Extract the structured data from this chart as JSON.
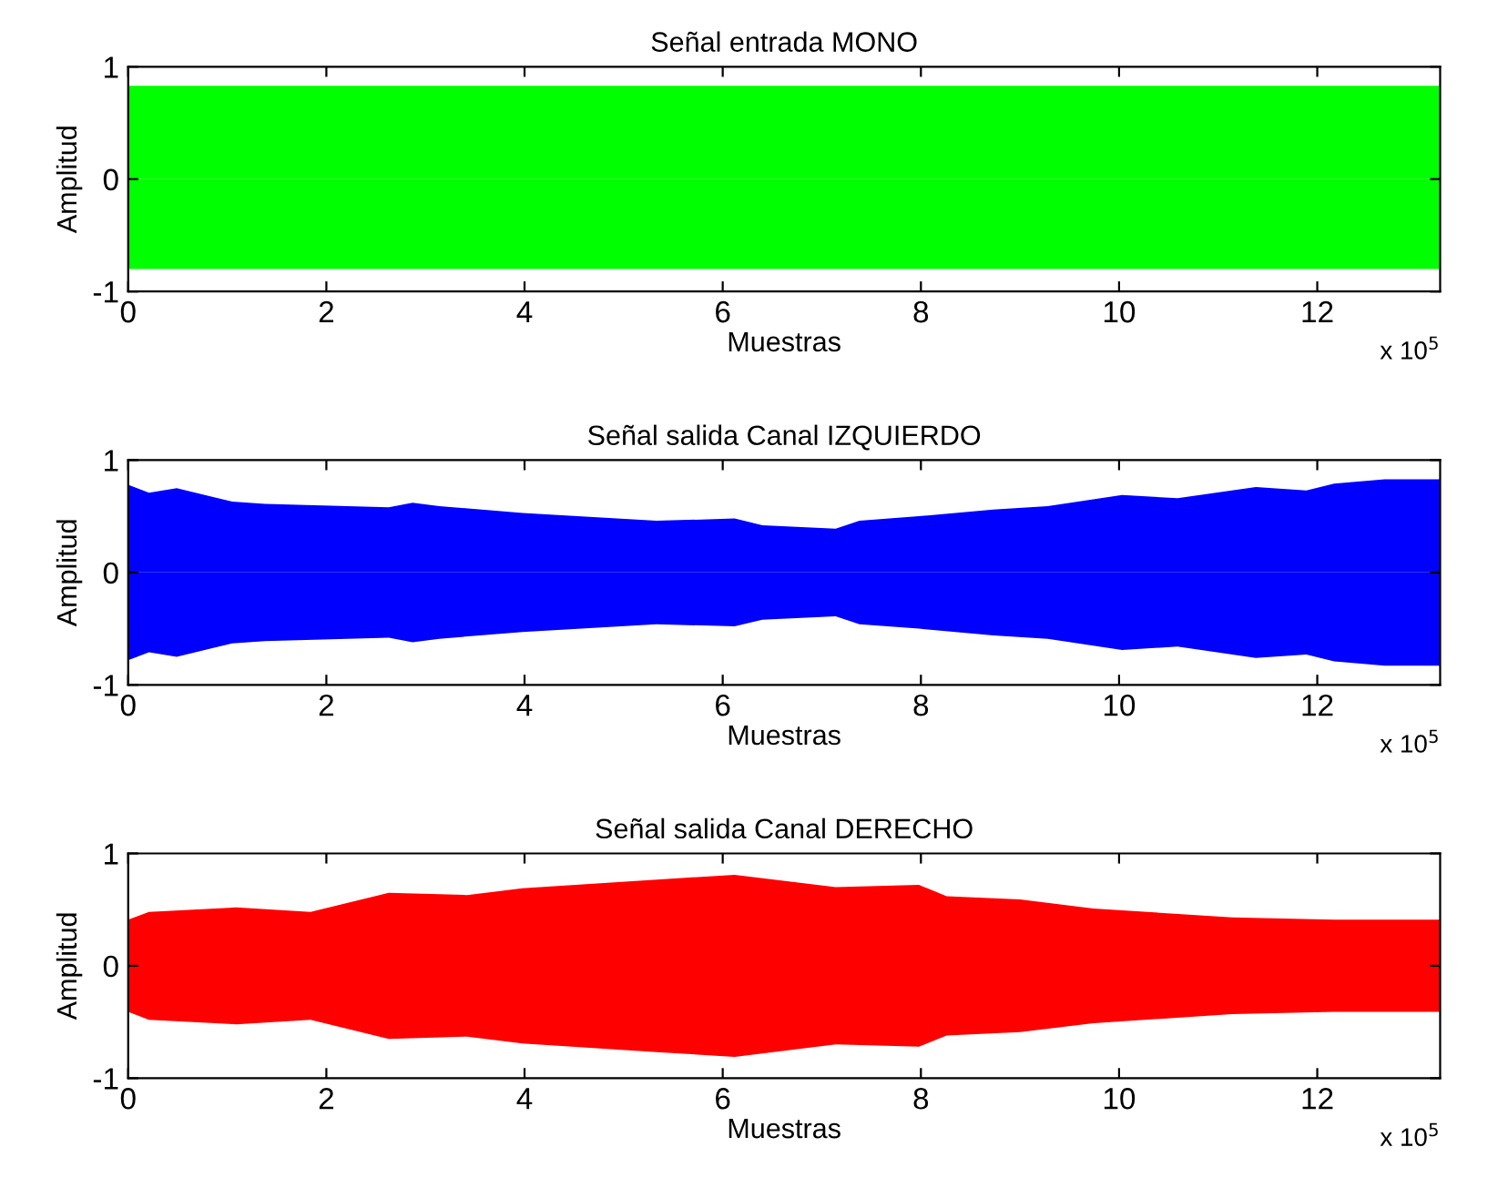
{
  "chart_data": [
    {
      "type": "area",
      "title": "Señal entrada MONO",
      "xlabel": "Muestras",
      "ylabel": "Amplitud",
      "annotations": [
        "x 10$^{5}$"
      ],
      "xlim": [
        0,
        13.24
      ],
      "ylim": [
        -1,
        1
      ],
      "xticks": [
        0,
        2,
        4,
        6,
        8,
        10,
        12
      ],
      "yticks": [
        -1,
        0,
        1
      ],
      "series": [
        {
          "color": "#00ff00",
          "x": [
            0,
            6.6,
            13.24
          ],
          "values": [
            0.83,
            0.83,
            0.83
          ]
        },
        {
          "color": "#00ff00",
          "x": [
            0,
            6.6,
            13.24
          ],
          "values": [
            -0.8,
            -0.8,
            -0.8
          ]
        }
      ]
    },
    {
      "type": "area",
      "title": "Señal salida Canal IZQUIERDO",
      "xlabel": "Muestras",
      "ylabel": "Amplitud",
      "annotations": [
        "x 10$^{5}$"
      ],
      "xlim": [
        0,
        13.24
      ],
      "ylim": [
        -1,
        1
      ],
      "xticks": [
        0,
        2,
        4,
        6,
        8,
        10,
        12
      ],
      "yticks": [
        -1,
        0,
        1
      ],
      "series": [
        {
          "color": "#0000ff",
          "x": [
            0,
            0.21,
            0.49,
            0.82,
            1.05,
            1.38,
            2.63,
            2.87,
            3.14,
            3.98,
            5.33,
            6.12,
            6.4,
            7.14,
            7.38,
            7.98,
            8.73,
            9.28,
            10.03,
            10.59,
            11.38,
            11.89,
            12.17,
            12.68,
            13.24
          ],
          "values": [
            0.78,
            0.71,
            0.75,
            0.68,
            0.63,
            0.61,
            0.58,
            0.62,
            0.59,
            0.53,
            0.46,
            0.48,
            0.42,
            0.39,
            0.46,
            0.5,
            0.56,
            0.59,
            0.69,
            0.66,
            0.76,
            0.73,
            0.79,
            0.83,
            0.83
          ]
        },
        {
          "color": "#0000ff",
          "x": [
            0,
            0.21,
            0.49,
            0.82,
            1.05,
            1.38,
            2.63,
            2.87,
            3.14,
            3.98,
            5.33,
            6.12,
            6.4,
            7.14,
            7.38,
            7.98,
            8.73,
            9.28,
            10.03,
            10.59,
            11.38,
            11.89,
            12.17,
            12.68,
            13.24
          ],
          "values": [
            -0.78,
            -0.71,
            -0.75,
            -0.68,
            -0.63,
            -0.61,
            -0.58,
            -0.62,
            -0.59,
            -0.53,
            -0.46,
            -0.48,
            -0.42,
            -0.39,
            -0.46,
            -0.5,
            -0.56,
            -0.59,
            -0.69,
            -0.66,
            -0.76,
            -0.73,
            -0.79,
            -0.83,
            -0.83
          ]
        }
      ]
    },
    {
      "type": "area",
      "title": "Señal salida Canal DERECHO",
      "xlabel": "Muestras",
      "ylabel": "Amplitud",
      "annotations": [
        "x 10$^{5}$"
      ],
      "xlim": [
        0,
        13.24
      ],
      "ylim": [
        -1,
        1
      ],
      "xticks": [
        0,
        2,
        4,
        6,
        8,
        10,
        12
      ],
      "yticks": [
        -1,
        0,
        1
      ],
      "series": [
        {
          "color": "#ff0000",
          "x": [
            0,
            0.21,
            1.09,
            1.84,
            2.63,
            3.42,
            3.98,
            5.37,
            6.12,
            7.14,
            7.98,
            8.26,
            9.0,
            9.74,
            11.14,
            12.17,
            13.24
          ],
          "values": [
            0.41,
            0.48,
            0.52,
            0.48,
            0.65,
            0.63,
            0.69,
            0.77,
            0.81,
            0.7,
            0.72,
            0.62,
            0.59,
            0.51,
            0.43,
            0.41,
            0.41
          ]
        },
        {
          "color": "#ff0000",
          "x": [
            0,
            0.21,
            1.09,
            1.84,
            2.63,
            3.42,
            3.98,
            5.37,
            6.12,
            7.14,
            7.98,
            8.26,
            9.0,
            9.74,
            11.14,
            12.17,
            13.24
          ],
          "values": [
            -0.41,
            -0.48,
            -0.52,
            -0.48,
            -0.65,
            -0.63,
            -0.69,
            -0.77,
            -0.81,
            -0.7,
            -0.72,
            -0.62,
            -0.59,
            -0.51,
            -0.43,
            -0.41,
            -0.41
          ]
        }
      ]
    }
  ]
}
